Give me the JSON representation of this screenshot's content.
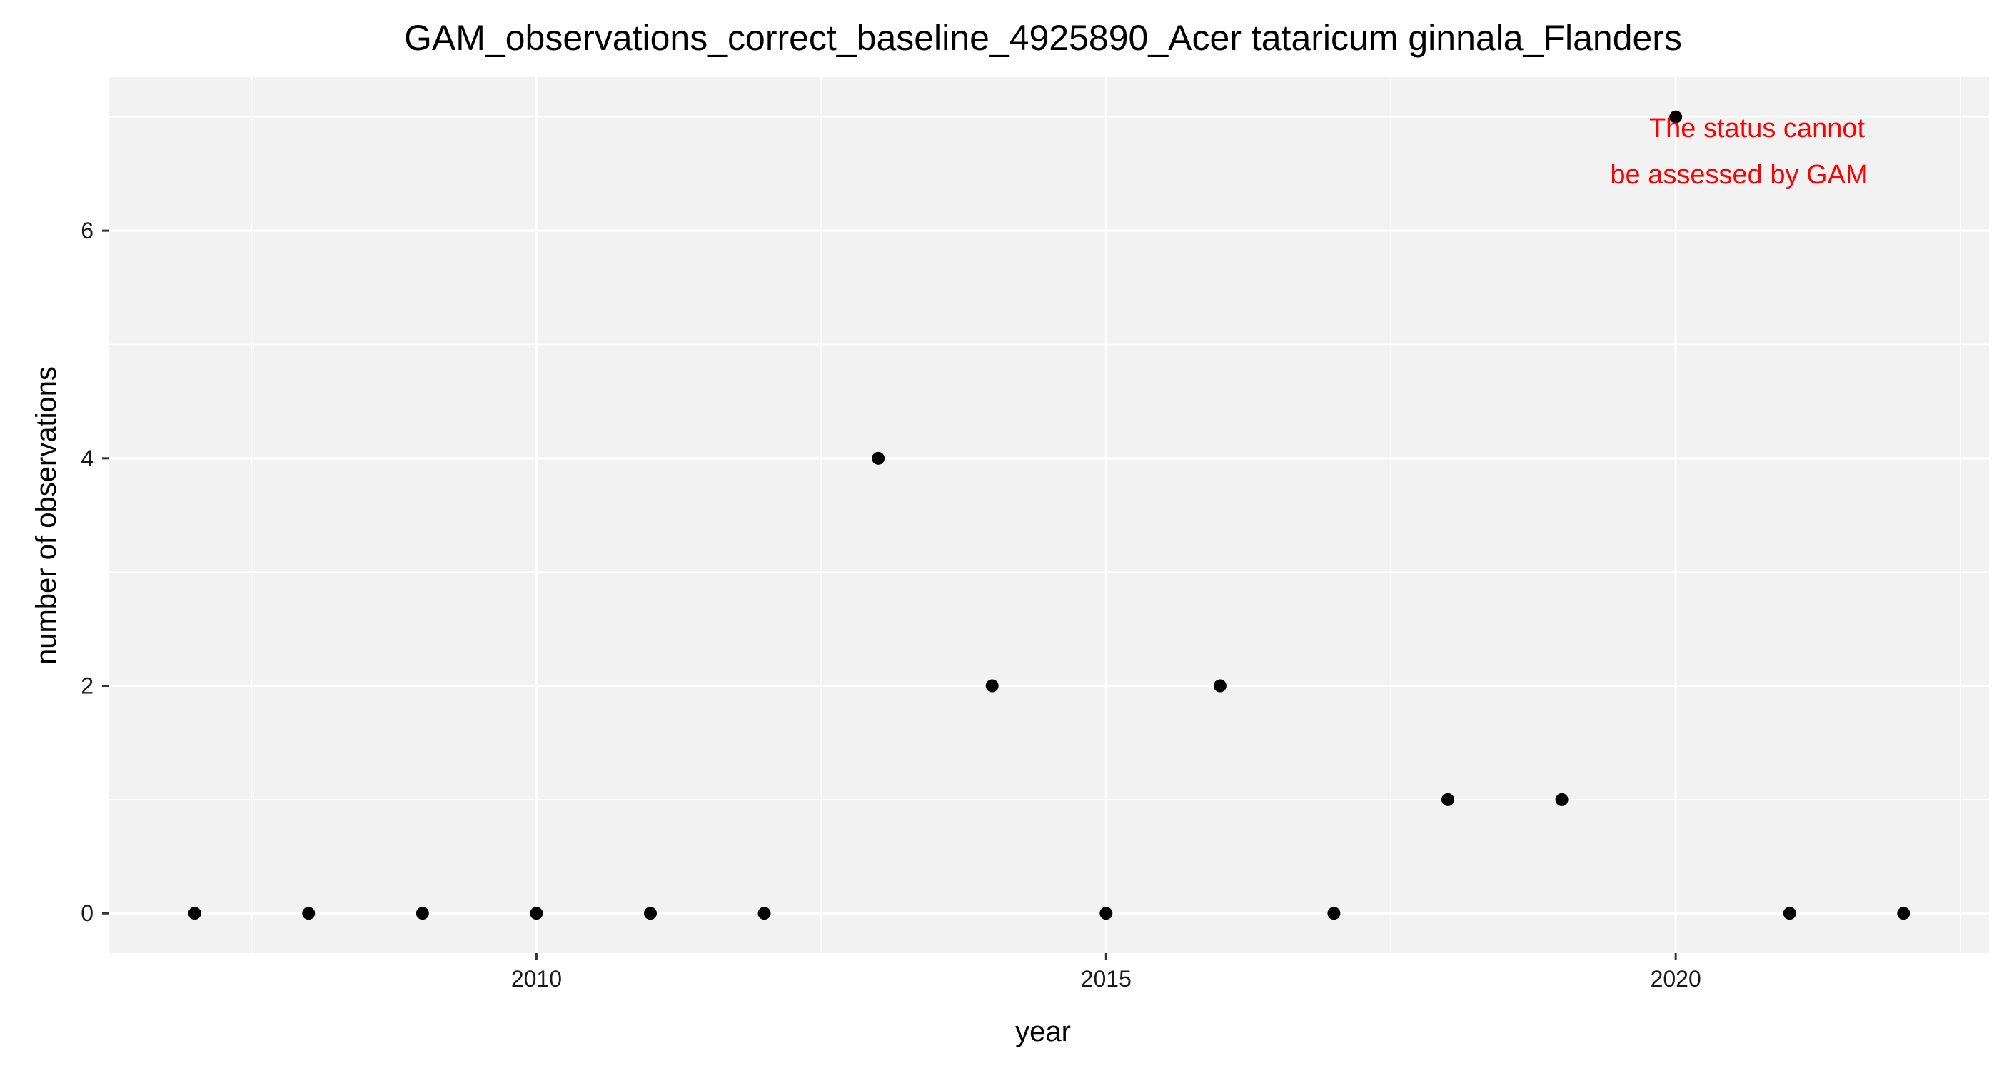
{
  "chart_data": {
    "type": "scatter",
    "title": "GAM_observations_correct_baseline_4925890_Acer tataricum ginnala_Flanders",
    "xlabel": "year",
    "ylabel": "number of observations",
    "x_ticks": [
      "2010",
      "2015",
      "2020"
    ],
    "y_ticks": [
      "0",
      "2",
      "4",
      "6"
    ],
    "xlim": [
      2006.25,
      2022.75
    ],
    "ylim": [
      -0.35,
      7.35
    ],
    "grid": true,
    "panel_background": "#F2F2F2",
    "grid_color": "#FFFFFF",
    "point_color": "#000000",
    "points": [
      {
        "x": 2007,
        "y": 0
      },
      {
        "x": 2008,
        "y": 0
      },
      {
        "x": 2009,
        "y": 0
      },
      {
        "x": 2010,
        "y": 0
      },
      {
        "x": 2011,
        "y": 0
      },
      {
        "x": 2012,
        "y": 0
      },
      {
        "x": 2013,
        "y": 4
      },
      {
        "x": 2014,
        "y": 2
      },
      {
        "x": 2015,
        "y": 0
      },
      {
        "x": 2016,
        "y": 2
      },
      {
        "x": 2017,
        "y": 0
      },
      {
        "x": 2018,
        "y": 1
      },
      {
        "x": 2019,
        "y": 1
      },
      {
        "x": 2020,
        "y": 7
      },
      {
        "x": 2021,
        "y": 0
      },
      {
        "x": 2022,
        "y": 0
      }
    ],
    "annotation": {
      "lines": [
        "The status cannot",
        "be assessed by GAM"
      ],
      "color": "#FF0000",
      "placement": "top-right"
    }
  }
}
